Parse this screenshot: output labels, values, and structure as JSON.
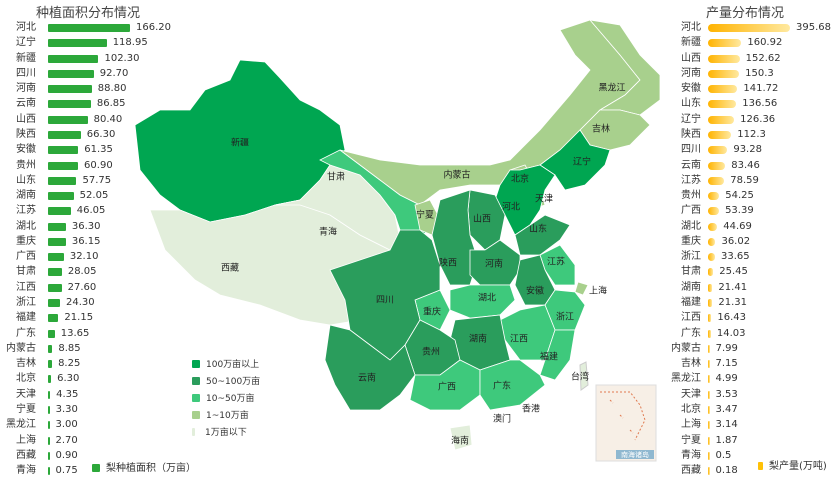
{
  "chart_data": [
    {
      "type": "bar",
      "orientation": "horizontal",
      "title": "种植面积分布情况",
      "legend": "梨种植面积（万亩）",
      "legend_placement": "bottom",
      "color": "#2ca83a",
      "categories": [
        "河北",
        "辽宁",
        "新疆",
        "四川",
        "河南",
        "云南",
        "山西",
        "陕西",
        "安徽",
        "贵州",
        "山东",
        "湖南",
        "江苏",
        "湖北",
        "重庆",
        "广西",
        "甘肃",
        "江西",
        "浙江",
        "福建",
        "广东",
        "内蒙古",
        "吉林",
        "北京",
        "天津",
        "宁夏",
        "黑龙江",
        "上海",
        "西藏",
        "青海"
      ],
      "values": [
        "166.20",
        "118.95",
        "102.30",
        "92.70",
        "88.80",
        "86.85",
        "80.40",
        "66.30",
        "61.35",
        "60.90",
        "57.75",
        "52.05",
        "46.05",
        "36.30",
        "36.15",
        "32.10",
        "28.05",
        "27.60",
        "24.30",
        "21.15",
        "13.65",
        "8.85",
        "8.25",
        "6.30",
        "4.35",
        "3.30",
        "3.00",
        "2.70",
        "0.90",
        "0.75"
      ]
    },
    {
      "type": "bar",
      "orientation": "horizontal",
      "title": "产量分布情况",
      "legend": "梨产量(万吨)",
      "legend_placement": "bottom",
      "color": "#ffc107",
      "categories": [
        "河北",
        "新疆",
        "山西",
        "河南",
        "安徽",
        "山东",
        "辽宁",
        "陕西",
        "四川",
        "云南",
        "江苏",
        "贵州",
        "广西",
        "湖北",
        "重庆",
        "浙江",
        "甘肃",
        "湖南",
        "福建",
        "江西",
        "广东",
        "内蒙古",
        "吉林",
        "黑龙江",
        "天津",
        "北京",
        "上海",
        "宁夏",
        "青海",
        "西藏"
      ],
      "values": [
        "395.68",
        "160.92",
        "152.62",
        "150.3",
        "141.72",
        "136.56",
        "126.36",
        "112.3",
        "93.28",
        "83.46",
        "78.59",
        "54.25",
        "53.39",
        "44.69",
        "36.02",
        "33.65",
        "25.45",
        "21.41",
        "21.31",
        "16.43",
        "14.03",
        "7.99",
        "7.15",
        "4.99",
        "3.53",
        "3.47",
        "3.14",
        "1.87",
        "0.5",
        "0.18"
      ]
    },
    {
      "type": "choropleth",
      "legend_placement": "bottom-left",
      "classes": [
        {
          "label": "100万亩以上",
          "color": "#00a651"
        },
        {
          "label": "50~100万亩",
          "color": "#2a9d5c"
        },
        {
          "label": "10~50万亩",
          "color": "#3ec97c"
        },
        {
          "label": "1~10万亩",
          "color": "#a8d08d"
        },
        {
          "label": "1万亩以下",
          "color": "#e2eedb"
        }
      ],
      "regions": {
        "新疆": 0,
        "河北": 0,
        "辽宁": 0,
        "四川": 1,
        "河南": 1,
        "云南": 1,
        "山西": 1,
        "陕西": 1,
        "安徽": 1,
        "贵州": 1,
        "山东": 1,
        "湖南": 1,
        "江苏": 2,
        "湖北": 2,
        "重庆": 2,
        "广西": 2,
        "甘肃": 2,
        "江西": 2,
        "浙江": 2,
        "福建": 2,
        "广东": 2,
        "内蒙古": 3,
        "吉林": 3,
        "北京": 3,
        "天津": 3,
        "宁夏": 3,
        "黑龙江": 3,
        "上海": 3,
        "西藏": 4,
        "青海": 4
      },
      "other_labels": [
        "台湾",
        "香港",
        "澳门",
        "海南",
        "南海诸岛"
      ]
    }
  ]
}
